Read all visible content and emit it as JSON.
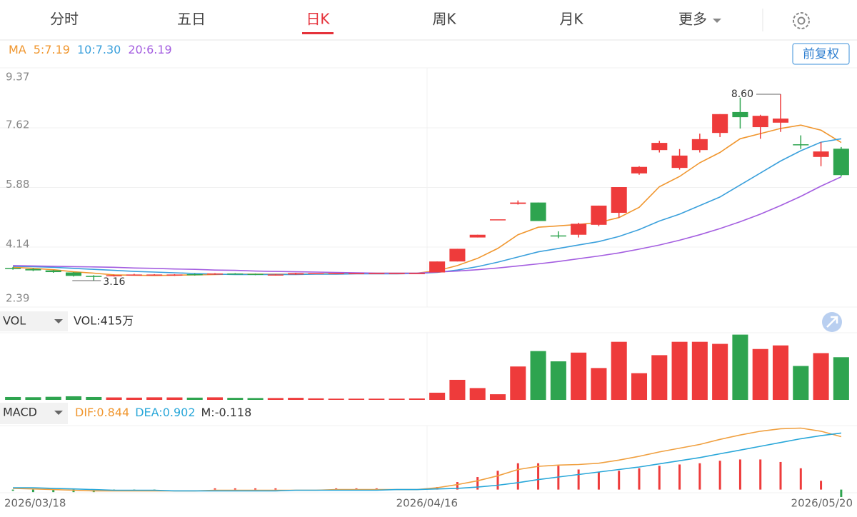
{
  "tabs": [
    "分时",
    "五日",
    "日K",
    "周K",
    "月K",
    "更多"
  ],
  "active_tab": 2,
  "adjust_button": "前复权",
  "chart_data": [
    {
      "type": "candlestick",
      "up_color": "#ee3b3b",
      "down_color": "#2ea44f",
      "legend": [
        {
          "text": "MA",
          "color": "#f0962e"
        },
        {
          "text": "5:7.19",
          "color": "#f0962e"
        },
        {
          "text": "10:7.30",
          "color": "#3aa0dc"
        },
        {
          "text": "20:6.19",
          "color": "#a45ee0"
        }
      ],
      "ylim": [
        2.39,
        9.37
      ],
      "yticks": [
        9.37,
        7.62,
        5.88,
        4.14,
        2.39
      ],
      "grid": true,
      "max_label": "8.60",
      "min_label": "3.16",
      "open": [
        3.53,
        3.5,
        3.46,
        3.4,
        3.3,
        3.3,
        3.33,
        3.33,
        3.32,
        3.35,
        3.34,
        3.37,
        3.36,
        3.32,
        3.34,
        3.38,
        3.38,
        3.38,
        3.38,
        3.38,
        3.38,
        3.4,
        3.72,
        4.42,
        4.95,
        5.4,
        5.44,
        4.48,
        4.5,
        4.79,
        5.14,
        6.29,
        6.97,
        6.45,
        6.97,
        7.47,
        8.08,
        7.64,
        7.77,
        7.14,
        6.77,
        7.01
      ],
      "high": [
        3.56,
        3.52,
        3.47,
        3.41,
        3.32,
        3.34,
        3.36,
        3.35,
        3.35,
        3.37,
        3.38,
        3.38,
        3.37,
        3.35,
        3.39,
        3.38,
        3.38,
        3.38,
        3.38,
        3.38,
        3.38,
        3.72,
        4.09,
        4.5,
        4.95,
        5.5,
        5.44,
        4.6,
        4.85,
        5.35,
        5.89,
        6.5,
        7.24,
        7.0,
        7.45,
        8.02,
        8.5,
        8.0,
        8.6,
        7.4,
        7.2,
        7.06
      ],
      "low": [
        3.48,
        3.44,
        3.39,
        3.28,
        3.16,
        3.28,
        3.31,
        3.31,
        3.3,
        3.31,
        3.33,
        3.34,
        3.32,
        3.31,
        3.33,
        3.38,
        3.38,
        3.38,
        3.38,
        3.38,
        3.38,
        3.4,
        3.72,
        4.42,
        4.95,
        5.38,
        4.9,
        4.4,
        4.42,
        4.75,
        5.0,
        6.25,
        6.9,
        6.4,
        6.9,
        7.35,
        7.6,
        7.3,
        7.5,
        7.0,
        6.5,
        6.2
      ],
      "close": [
        3.5,
        3.46,
        3.41,
        3.3,
        3.27,
        3.32,
        3.34,
        3.34,
        3.34,
        3.33,
        3.37,
        3.36,
        3.33,
        3.34,
        3.38,
        3.38,
        3.38,
        3.38,
        3.38,
        3.38,
        3.38,
        3.72,
        4.09,
        4.5,
        4.95,
        5.44,
        4.9,
        4.45,
        4.82,
        5.35,
        5.89,
        6.48,
        7.18,
        6.81,
        7.29,
        8.02,
        7.93,
        7.97,
        7.89,
        7.12,
        6.93,
        6.24
      ],
      "lines": [
        {
          "color": "#f0962e",
          "values": [
            3.55,
            3.52,
            3.48,
            3.42,
            3.38,
            3.33,
            3.32,
            3.31,
            3.32,
            3.33,
            3.34,
            3.35,
            3.35,
            3.35,
            3.35,
            3.36,
            3.37,
            3.38,
            3.38,
            3.38,
            3.38,
            3.45,
            3.6,
            3.81,
            4.1,
            4.5,
            4.72,
            4.76,
            4.8,
            4.86,
            5.0,
            5.3,
            5.9,
            6.2,
            6.6,
            6.9,
            7.3,
            7.45,
            7.6,
            7.7,
            7.55,
            7.19
          ]
        },
        {
          "color": "#3aa0dc",
          "values": [
            3.58,
            3.57,
            3.55,
            3.52,
            3.49,
            3.46,
            3.43,
            3.41,
            3.39,
            3.37,
            3.35,
            3.34,
            3.34,
            3.34,
            3.34,
            3.35,
            3.35,
            3.36,
            3.36,
            3.36,
            3.37,
            3.4,
            3.47,
            3.57,
            3.7,
            3.85,
            4.0,
            4.1,
            4.2,
            4.3,
            4.45,
            4.65,
            4.9,
            5.1,
            5.35,
            5.6,
            5.95,
            6.3,
            6.65,
            6.95,
            7.2,
            7.3
          ]
        },
        {
          "color": "#a45ee0",
          "values": [
            3.6,
            3.59,
            3.58,
            3.57,
            3.56,
            3.55,
            3.53,
            3.52,
            3.5,
            3.49,
            3.47,
            3.46,
            3.44,
            3.43,
            3.42,
            3.41,
            3.4,
            3.39,
            3.38,
            3.38,
            3.38,
            3.41,
            3.44,
            3.48,
            3.53,
            3.59,
            3.65,
            3.72,
            3.8,
            3.88,
            3.97,
            4.08,
            4.2,
            4.34,
            4.5,
            4.68,
            4.88,
            5.1,
            5.35,
            5.62,
            5.92,
            6.19
          ]
        }
      ]
    },
    {
      "type": "bar",
      "indicator": "VOL",
      "readout": "VOL:415万",
      "ylim": [
        0,
        660
      ],
      "values": [
        28,
        26,
        30,
        35,
        28,
        24,
        22,
        25,
        24,
        22,
        25,
        20,
        18,
        18,
        20,
        15,
        12,
        12,
        12,
        12,
        14,
        70,
        195,
        115,
        55,
        325,
        475,
        375,
        460,
        310,
        565,
        260,
        435,
        565,
        565,
        545,
        635,
        495,
        530,
        330,
        455,
        415
      ]
    },
    {
      "type": "macd",
      "indicator": "MACD",
      "ylim": [
        -0.05,
        1.02
      ],
      "readouts": [
        {
          "text": "DIF:0.844",
          "color": "#f0962e"
        },
        {
          "text": "DEA:0.902",
          "color": "#29a7d9"
        },
        {
          "text": "M:-0.118",
          "color": "#333333"
        }
      ],
      "categories": [
        "2026/03/18",
        null,
        null,
        null,
        null,
        null,
        null,
        null,
        null,
        null,
        null,
        null,
        null,
        null,
        null,
        null,
        null,
        null,
        null,
        null,
        "2026/04/16",
        null,
        null,
        null,
        null,
        null,
        null,
        null,
        null,
        null,
        null,
        null,
        null,
        null,
        null,
        null,
        null,
        null,
        null,
        null,
        null,
        "2026/05/20"
      ],
      "series": [
        {
          "color": "#f0a040",
          "values": [
            0.02,
            0.01,
            0.0,
            -0.01,
            -0.02,
            -0.02,
            -0.02,
            -0.02,
            -0.02,
            -0.02,
            -0.01,
            -0.01,
            -0.01,
            -0.01,
            -0.01,
            -0.01,
            0.0,
            0.0,
            0.0,
            0.0,
            0.0,
            0.03,
            0.08,
            0.14,
            0.22,
            0.32,
            0.37,
            0.39,
            0.4,
            0.42,
            0.47,
            0.53,
            0.6,
            0.66,
            0.72,
            0.8,
            0.87,
            0.93,
            0.97,
            0.98,
            0.93,
            0.844
          ]
        },
        {
          "color": "#29a7d9",
          "values": [
            0.03,
            0.03,
            0.02,
            0.01,
            0.0,
            -0.01,
            -0.01,
            -0.01,
            -0.02,
            -0.02,
            -0.02,
            -0.02,
            -0.02,
            -0.02,
            -0.01,
            -0.01,
            -0.01,
            -0.01,
            -0.01,
            0.0,
            0.0,
            0.01,
            0.02,
            0.04,
            0.07,
            0.11,
            0.16,
            0.2,
            0.24,
            0.28,
            0.32,
            0.36,
            0.41,
            0.46,
            0.51,
            0.57,
            0.63,
            0.69,
            0.75,
            0.81,
            0.86,
            0.902
          ]
        }
      ],
      "histogram": [
        -0.02,
        -0.04,
        -0.04,
        -0.04,
        -0.04,
        -0.02,
        -0.02,
        -0.02,
        0,
        0,
        0.02,
        0.02,
        0.02,
        0.02,
        0,
        0,
        0.02,
        0.02,
        0.02,
        0,
        0,
        0.04,
        0.12,
        0.2,
        0.3,
        0.42,
        0.42,
        0.38,
        0.32,
        0.28,
        0.3,
        0.34,
        0.38,
        0.4,
        0.42,
        0.46,
        0.48,
        0.48,
        0.44,
        0.34,
        0.14,
        -0.118
      ]
    }
  ]
}
